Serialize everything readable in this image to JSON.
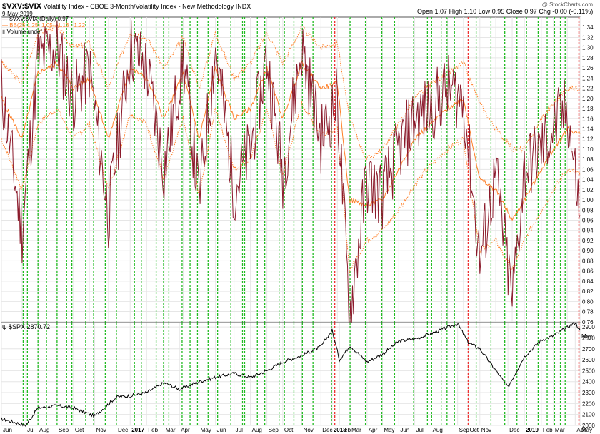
{
  "header": {
    "symbol": "$VXV:$VIX",
    "description": "Volatility Index - CBOE 3-Month/Volatility Index - New Methodology",
    "exchange": "INDX",
    "date": "9-May-2019",
    "watermark": "@ StockCharts.com",
    "open_label": "Open",
    "open": "1.07",
    "high_label": "High",
    "high": "1.10",
    "low_label": "Low",
    "low": "0.95",
    "close_label": "Close",
    "close": "0.97",
    "chg_label": "Chg",
    "chg": "-0.00 (-0.11%)"
  },
  "legend": {
    "series_main": "$VXV:$VIX (Daily) 0.97",
    "bb": "BB(25,1.25) 1.05 - 1.13 - 1.22",
    "volume": "Volume undef",
    "spx": "$SPX 2870.72"
  },
  "colors": {
    "ratio_line": "#8b1a2b",
    "bollinger": "#ff7f27",
    "green_marker": "#22bb22",
    "red_marker": "#ee3333",
    "spx_line": "#000000",
    "grid": "#e6e6e6"
  },
  "chart_data": [
    {
      "type": "line",
      "title": "$VXV:$VIX",
      "y_scale": "linear",
      "ylim": [
        0.74,
        1.36
      ],
      "yticks": [
        "1.34",
        "1.32",
        "1.30",
        "1.28",
        "1.26",
        "1.24",
        "1.22",
        "1.20",
        "1.18",
        "1.16",
        "1.14",
        "1.12",
        "1.10",
        "1.08",
        "1.06",
        "1.04",
        "1.02",
        "1.00",
        "0.98",
        "0.96",
        "0.94",
        "0.92",
        "0.90",
        "0.88",
        "0.86",
        "0.84",
        "0.82",
        "0.80",
        "0.78",
        "0.76"
      ],
      "xticks": [
        "Jun",
        "Jul",
        "Aug",
        "Sep",
        "Oct",
        "Nov",
        "Dec",
        "2017",
        "Feb",
        "Mar",
        "Apr",
        "May",
        "Jun",
        "Jul",
        "Aug",
        "Sep",
        "Oct",
        "Nov",
        "Dec",
        "2018",
        "Feb",
        "Mar",
        "Apr",
        "May",
        "Jun",
        "Jul",
        "Aug",
        "Sep",
        "Oct",
        "Nov",
        "Dec",
        "2019",
        "Feb",
        "Mar",
        "Apr",
        "May"
      ],
      "x_dates": [
        "2016-05-12",
        "2016-06-20",
        "2016-07-20",
        "2016-08-25",
        "2016-09-25",
        "2016-10-25",
        "2016-11-30",
        "2017-01-10",
        "2017-02-10",
        "2017-03-15",
        "2017-04-20",
        "2017-05-20",
        "2017-06-20",
        "2017-07-25",
        "2017-08-25",
        "2017-09-25",
        "2017-10-25",
        "2017-11-30",
        "2018-01-05",
        "2018-02-05",
        "2018-02-28",
        "2018-04-01",
        "2018-05-01",
        "2018-06-01",
        "2018-07-01",
        "2018-08-01",
        "2018-09-01",
        "2018-10-01",
        "2018-11-01",
        "2018-12-01",
        "2019-01-01",
        "2019-01-24",
        "2019-02-25",
        "2019-03-20",
        "2019-04-15",
        "2019-05-09"
      ],
      "series": [
        {
          "name": "$VXV:$VIX",
          "values": [
            1.22,
            0.94,
            1.28,
            1.3,
            1.2,
            1.26,
            0.97,
            1.3,
            1.26,
            1.06,
            1.28,
            1.0,
            1.3,
            1.02,
            1.1,
            1.28,
            1.05,
            1.3,
            1.12,
            1.2,
            0.77,
            1.04,
            1.01,
            1.1,
            1.16,
            1.18,
            1.22,
            1.2,
            0.88,
            1.05,
            0.8,
            1.06,
            1.1,
            1.14,
            1.18,
            0.97
          ]
        },
        {
          "name": "BB upper",
          "values": [
            1.27,
            1.23,
            1.33,
            1.34,
            1.3,
            1.31,
            1.22,
            1.33,
            1.32,
            1.26,
            1.32,
            1.22,
            1.33,
            1.24,
            1.27,
            1.33,
            1.27,
            1.34,
            1.3,
            1.31,
            1.16,
            1.08,
            1.1,
            1.15,
            1.2,
            1.23,
            1.25,
            1.27,
            1.19,
            1.14,
            1.1,
            1.1,
            1.16,
            1.19,
            1.22,
            1.22
          ]
        },
        {
          "name": "BB middle",
          "values": [
            1.2,
            1.12,
            1.25,
            1.27,
            1.22,
            1.24,
            1.12,
            1.26,
            1.24,
            1.16,
            1.25,
            1.12,
            1.26,
            1.16,
            1.18,
            1.26,
            1.16,
            1.27,
            1.22,
            1.23,
            1.0,
            0.99,
            1.0,
            1.06,
            1.12,
            1.15,
            1.18,
            1.2,
            1.04,
            1.02,
            0.96,
            1.0,
            1.06,
            1.1,
            1.14,
            1.13
          ]
        },
        {
          "name": "BB lower",
          "values": [
            1.12,
            1.02,
            1.15,
            1.18,
            1.12,
            1.15,
            1.02,
            1.17,
            1.15,
            1.04,
            1.16,
            1.01,
            1.18,
            1.06,
            1.08,
            1.18,
            1.05,
            1.19,
            1.13,
            1.14,
            0.86,
            0.92,
            0.94,
            0.98,
            1.03,
            1.07,
            1.1,
            1.12,
            0.9,
            0.92,
            0.86,
            0.92,
            0.98,
            1.02,
            1.06,
            1.05
          ]
        }
      ],
      "green_marker_dates": [
        "2016-06-22",
        "2016-06-30",
        "2016-07-20",
        "2016-08-05",
        "2016-08-25",
        "2016-09-12",
        "2016-09-22",
        "2016-10-18",
        "2016-11-02",
        "2016-11-24",
        "2016-12-15",
        "2017-01-18",
        "2017-01-31",
        "2017-02-28",
        "2017-03-14",
        "2017-03-24",
        "2017-04-18",
        "2017-05-03",
        "2017-05-17",
        "2017-06-06",
        "2017-06-24",
        "2017-07-19",
        "2017-08-10",
        "2017-08-14",
        "2017-09-07",
        "2017-09-21",
        "2017-10-18",
        "2017-10-28",
        "2017-11-15",
        "2017-12-01",
        "2017-12-21",
        "2018-01-25",
        "2018-03-01",
        "2018-03-30",
        "2018-04-30",
        "2018-05-24",
        "2018-06-29",
        "2018-07-25",
        "2018-08-02",
        "2018-08-20",
        "2018-08-31",
        "2018-09-14",
        "2018-10-25",
        "2018-11-22",
        "2018-12-18",
        "2019-01-10",
        "2019-01-28",
        "2019-02-19",
        "2019-03-08",
        "2019-03-22",
        "2019-04-02",
        "2019-04-11"
      ],
      "red_marker_dates": [
        "2018-01-31",
        "2018-10-10",
        "2019-05-07"
      ]
    },
    {
      "type": "line",
      "title": "$SPX",
      "y_scale": "linear",
      "ylim": [
        2000,
        2940
      ],
      "yticks": [
        "2900",
        "2800",
        "2700",
        "2600",
        "2500",
        "2400",
        "2300",
        "2200",
        "2100",
        "2000"
      ],
      "xticks": [
        "Jun",
        "Jul",
        "Aug",
        "Sep",
        "Oct",
        "Nov",
        "Dec",
        "2017",
        "Feb",
        "Mar",
        "Apr",
        "May",
        "Jun",
        "Jul",
        "Aug",
        "Sep",
        "Oct",
        "Nov",
        "Dec",
        "2018",
        "Feb",
        "Mar",
        "Apr",
        "May",
        "Jun",
        "Jul",
        "Aug",
        "Sep",
        "Oct",
        "Nov",
        "Dec",
        "2019",
        "Feb",
        "Mar",
        "Apr",
        "May"
      ],
      "x_dates": [
        "2016-05-12",
        "2016-06-27",
        "2016-07-20",
        "2016-08-25",
        "2016-09-25",
        "2016-11-04",
        "2016-12-15",
        "2017-01-10",
        "2017-02-10",
        "2017-03-15",
        "2017-04-13",
        "2017-05-20",
        "2017-06-20",
        "2017-07-25",
        "2017-08-25",
        "2017-09-25",
        "2017-10-25",
        "2017-11-30",
        "2018-01-05",
        "2018-01-26",
        "2018-02-09",
        "2018-03-01",
        "2018-04-02",
        "2018-05-01",
        "2018-06-01",
        "2018-07-01",
        "2018-08-01",
        "2018-09-20",
        "2018-10-10",
        "2018-11-01",
        "2018-12-24",
        "2019-01-24",
        "2019-02-25",
        "2019-03-20",
        "2019-04-30",
        "2019-05-09"
      ],
      "series": [
        {
          "name": "$SPX",
          "values": [
            2060,
            2000,
            2160,
            2180,
            2160,
            2085,
            2260,
            2270,
            2300,
            2390,
            2330,
            2400,
            2440,
            2475,
            2440,
            2500,
            2580,
            2640,
            2720,
            2870,
            2600,
            2730,
            2580,
            2650,
            2770,
            2790,
            2840,
            2930,
            2760,
            2700,
            2350,
            2630,
            2780,
            2820,
            2940,
            2870
          ]
        }
      ]
    }
  ]
}
